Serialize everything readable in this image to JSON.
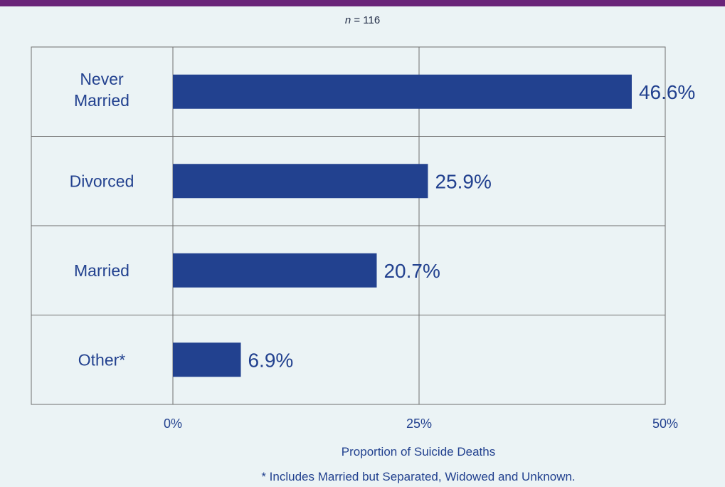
{
  "header": {
    "n_prefix": "n",
    "n_suffix": " = 116"
  },
  "colors": {
    "bar": "#22418f",
    "text": "#22418f",
    "header_bar": "#6a2479",
    "grid": "#6f6f6f",
    "background": "#ebf3f5"
  },
  "chart_data": {
    "type": "bar",
    "orientation": "horizontal",
    "categories": [
      "Never Married",
      "Divorced",
      "Married",
      "Other*"
    ],
    "values": [
      46.6,
      25.9,
      20.7,
      6.9
    ],
    "value_labels": [
      "46.6%",
      "25.9%",
      "20.7%",
      "6.9%"
    ],
    "xlabel": "Proportion of Suicide Deaths",
    "xlim": [
      0,
      50
    ],
    "xticks": [
      0,
      25,
      50
    ],
    "xtick_labels": [
      "0%",
      "25%",
      "50%"
    ],
    "grid": true,
    "footnote": "* Includes Married but Separated, Widowed and Unknown."
  }
}
